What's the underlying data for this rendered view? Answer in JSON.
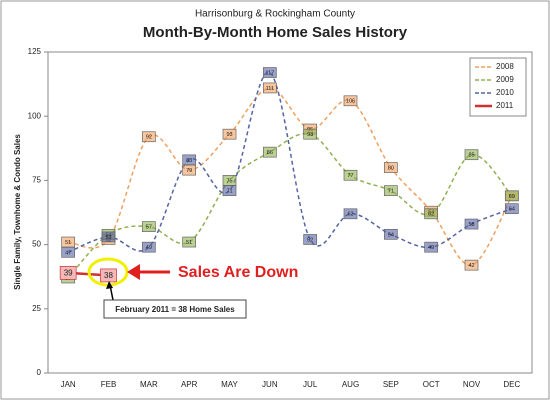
{
  "chart_data": {
    "type": "line",
    "subtitle": "Harrisonburg & Rockingham County",
    "title": "Month-By-Month Home Sales History",
    "y_label": "Single Family, Townhome & Condo Sales",
    "categories": [
      "JAN",
      "FEB",
      "MAR",
      "APR",
      "MAY",
      "JUN",
      "JUL",
      "AUG",
      "SEP",
      "OCT",
      "NOV",
      "DEC"
    ],
    "series": [
      {
        "name": "2008",
        "color": "#f0a060",
        "dashed": true,
        "values": [
          51,
          52,
          92,
          79,
          93,
          111,
          95,
          106,
          80,
          63,
          42,
          69
        ]
      },
      {
        "name": "2009",
        "color": "#90b050",
        "dashed": true,
        "values": [
          37,
          54,
          57,
          51,
          75,
          86,
          93,
          77,
          71,
          62,
          85,
          69
        ]
      },
      {
        "name": "2010",
        "color": "#5563a3",
        "dashed": true,
        "values": [
          47,
          53,
          49,
          83,
          71,
          117,
          52,
          62,
          54,
          49,
          58,
          64
        ]
      },
      {
        "name": "2011",
        "color": "#d03030",
        "dashed": false,
        "values": [
          39,
          38,
          null,
          null,
          null,
          null,
          null,
          null,
          null,
          null,
          null,
          null
        ]
      }
    ],
    "ylim": [
      0,
      125
    ],
    "yticks": [
      0,
      25,
      50,
      75,
      100,
      125
    ],
    "legend": "upper right",
    "annotations": [
      "Sales Are Down",
      "February 2011 = 38 Home Sales"
    ]
  }
}
